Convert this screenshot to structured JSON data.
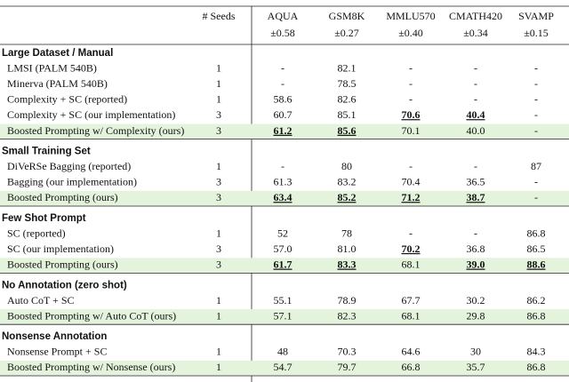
{
  "header": {
    "seeds_label": "# Seeds",
    "columns": [
      {
        "name": "AQUA",
        "std": "±0.58"
      },
      {
        "name": "GSM8K",
        "std": "±0.27"
      },
      {
        "name": "MMLU570",
        "std": "±0.40"
      },
      {
        "name": "CMATH420",
        "std": "±0.34"
      },
      {
        "name": "SVAMP",
        "std": "±0.15"
      }
    ]
  },
  "sections": [
    {
      "title": "Large Dataset / Manual",
      "rows": [
        {
          "label": "LMSI (PALM 540B)",
          "seeds": "1",
          "values": [
            "-",
            "82.1",
            "-",
            "-",
            "-"
          ]
        },
        {
          "label": "Minerva (PALM 540B)",
          "seeds": "1",
          "values": [
            "-",
            "78.5",
            "-",
            "-",
            "-"
          ]
        },
        {
          "label": "Complexity + SC (reported)",
          "seeds": "1",
          "values": [
            "58.6",
            "82.6",
            "-",
            "-",
            "-"
          ]
        },
        {
          "label": "Complexity + SC (our implementation)",
          "seeds": "3",
          "values": [
            "60.7",
            "85.1",
            "70.6",
            "40.4",
            "-"
          ],
          "best": [
            2,
            3
          ]
        },
        {
          "label": "Boosted Prompting w/ Complexity (ours)",
          "seeds": "3",
          "values": [
            "61.2",
            "85.6",
            "70.1",
            "40.0",
            "-"
          ],
          "best": [
            0,
            1
          ],
          "highlight": true
        }
      ]
    },
    {
      "title": "Small Training Set",
      "rows": [
        {
          "label": "DiVeRSe Bagging (reported)",
          "seeds": "1",
          "values": [
            "-",
            "80",
            "-",
            "-",
            "87"
          ]
        },
        {
          "label": "Bagging (our implementation)",
          "seeds": "3",
          "values": [
            "61.3",
            "83.2",
            "70.4",
            "36.5",
            "-"
          ]
        },
        {
          "label": "Boosted Prompting (ours)",
          "seeds": "3",
          "values": [
            "63.4",
            "85.2",
            "71.2",
            "38.7",
            "-"
          ],
          "best": [
            0,
            1,
            2,
            3
          ],
          "highlight": true
        }
      ]
    },
    {
      "title": "Few Shot Prompt",
      "rows": [
        {
          "label": "SC (reported)",
          "seeds": "1",
          "values": [
            "52",
            "78",
            "-",
            "-",
            "86.8"
          ]
        },
        {
          "label": "SC (our implementation)",
          "seeds": "3",
          "values": [
            "57.0",
            "81.0",
            "70.2",
            "36.8",
            "86.5"
          ],
          "best": [
            2
          ]
        },
        {
          "label": "Boosted Prompting (ours)",
          "seeds": "3",
          "values": [
            "61.7",
            "83.3",
            "68.1",
            "39.0",
            "88.6"
          ],
          "best": [
            0,
            1,
            3,
            4
          ],
          "highlight": true
        }
      ]
    },
    {
      "title": "No Annotation (zero shot)",
      "rows": [
        {
          "label": "Auto CoT + SC",
          "seeds": "1",
          "values": [
            "55.1",
            "78.9",
            "67.7",
            "30.2",
            "86.2"
          ]
        },
        {
          "label": "Boosted Prompting w/ Auto CoT (ours)",
          "seeds": "1",
          "values": [
            "57.1",
            "82.3",
            "68.1",
            "29.8",
            "86.8"
          ],
          "highlight": true
        }
      ]
    },
    {
      "title": "Nonsense Annotation",
      "rows": [
        {
          "label": "Nonsense Prompt + SC",
          "seeds": "1",
          "values": [
            "48",
            "70.3",
            "64.6",
            "30",
            "84.3"
          ]
        },
        {
          "label": "Boosted Prompting w/ Nonsense (ours)",
          "seeds": "1",
          "values": [
            "54.7",
            "79.7",
            "66.8",
            "35.7",
            "86.8"
          ],
          "highlight": true
        }
      ]
    }
  ]
}
